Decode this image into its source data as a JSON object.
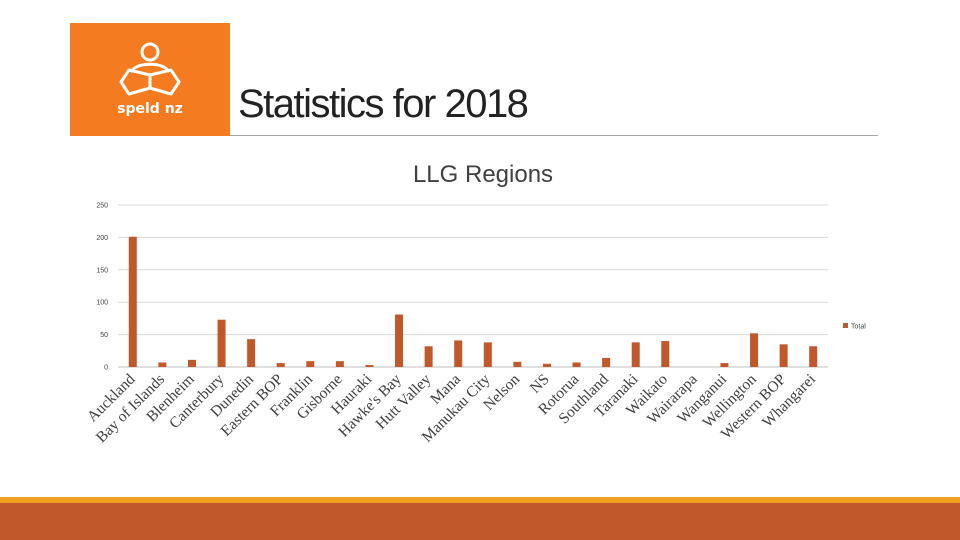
{
  "slide": {
    "title": "Statistics for 2018",
    "logo_text": "speld nz",
    "brand_color": "#f47b20",
    "footer_color": "#c0582a",
    "footer_line_color": "#f0a020"
  },
  "chart_data": {
    "type": "bar",
    "title": "LLG Regions",
    "xlabel": "",
    "ylabel": "",
    "ylim": [
      0,
      250
    ],
    "yticks": [
      0,
      50,
      100,
      150,
      200,
      250
    ],
    "grid": true,
    "legend_position": "right",
    "bar_color": "#c0582a",
    "categories": [
      "Auckland",
      "Bay of Islands",
      "Blenheim",
      "Canterbury",
      "Dunedin",
      "Eastern BOP",
      "Franklin",
      "Gisborne",
      "Hauraki",
      "Hawke's Bay",
      "Hutt Valley",
      "Mana",
      "Manukau City",
      "Nelson",
      "NS",
      "Rotorua",
      "Southland",
      "Taranaki",
      "Waikato",
      "Wairarapa",
      "Wanganui",
      "Wellington",
      "Western BOP",
      "Whangarei"
    ],
    "series": [
      {
        "name": "Total",
        "values": [
          201,
          7,
          11,
          73,
          43,
          6,
          9,
          9,
          3,
          81,
          32,
          41,
          38,
          8,
          5,
          7,
          14,
          38,
          40,
          0,
          6,
          52,
          35,
          32
        ]
      }
    ]
  }
}
